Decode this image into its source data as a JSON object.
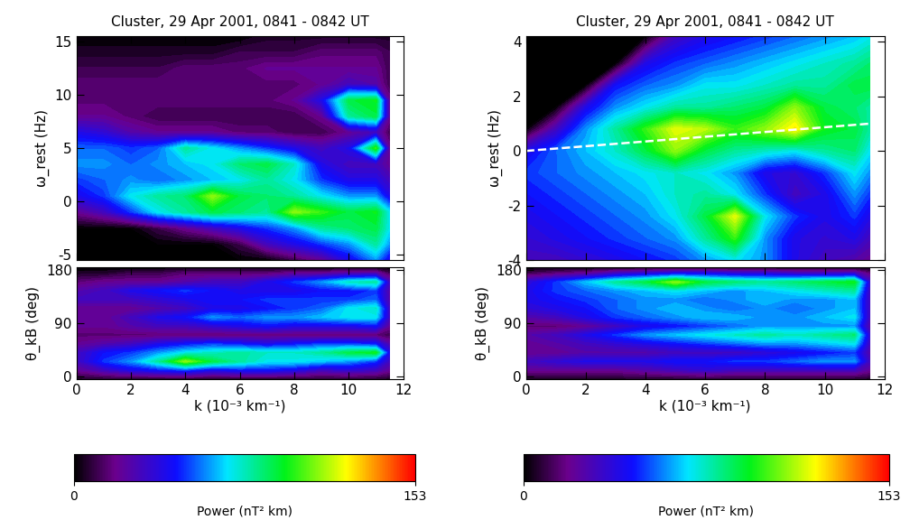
{
  "chart_data": [
    {
      "type": "heatmap",
      "title": "Cluster, 29 Apr 2001, 0841 - 0842 UT",
      "y_label": "ω_rest (Hz)",
      "tick_labels": "y",
      "xlim": [
        0,
        12
      ],
      "ylim": [
        -5.5,
        15.5
      ],
      "xticks": [
        0,
        2,
        4,
        6,
        8,
        10,
        12
      ],
      "yticks": [
        -5,
        0,
        5,
        10,
        15
      ],
      "x": [
        0,
        1,
        2,
        3,
        4,
        5,
        6,
        7,
        8,
        9,
        10,
        11,
        11.5
      ],
      "y": [
        -5.5,
        -4,
        -2.5,
        -1,
        0.5,
        2,
        3.5,
        5,
        6.5,
        8,
        9.5,
        11,
        12.5,
        14,
        15.5
      ],
      "cells": [
        [
          0,
          0,
          0,
          0,
          0,
          0,
          0,
          0,
          10,
          20,
          40,
          60,
          40
        ],
        [
          0,
          0,
          0,
          0,
          0,
          0,
          10,
          30,
          40,
          50,
          60,
          80,
          60
        ],
        [
          0,
          0,
          0,
          10,
          20,
          30,
          40,
          50,
          60,
          80,
          85,
          90,
          70
        ],
        [
          20,
          30,
          50,
          70,
          80,
          90,
          85,
          80,
          110,
          100,
          90,
          95,
          70
        ],
        [
          40,
          50,
          70,
          80,
          85,
          110,
          90,
          85,
          80,
          70,
          60,
          60,
          40
        ],
        [
          50,
          55,
          60,
          55,
          60,
          65,
          70,
          80,
          70,
          50,
          40,
          40,
          30
        ],
        [
          60,
          60,
          55,
          60,
          65,
          70,
          85,
          90,
          75,
          40,
          30,
          30,
          20
        ],
        [
          55,
          55,
          50,
          55,
          80,
          70,
          60,
          50,
          40,
          30,
          40,
          100,
          20
        ],
        [
          40,
          35,
          25,
          20,
          20,
          20,
          15,
          15,
          10,
          10,
          20,
          30,
          10
        ],
        [
          20,
          20,
          15,
          10,
          10,
          10,
          10,
          10,
          10,
          20,
          80,
          90,
          20
        ],
        [
          15,
          15,
          15,
          15,
          15,
          15,
          15,
          15,
          20,
          40,
          90,
          95,
          20
        ],
        [
          15,
          15,
          15,
          15,
          15,
          15,
          15,
          15,
          15,
          20,
          30,
          25,
          10
        ],
        [
          10,
          10,
          10,
          10,
          15,
          15,
          15,
          20,
          20,
          20,
          20,
          20,
          10
        ],
        [
          5,
          5,
          5,
          5,
          5,
          5,
          10,
          10,
          10,
          15,
          15,
          15,
          10
        ],
        [
          0,
          0,
          0,
          0,
          0,
          0,
          0,
          5,
          5,
          5,
          5,
          5,
          5
        ]
      ]
    },
    {
      "type": "heatmap",
      "x_label": "k (10⁻³ km⁻¹)",
      "y_label": "θ_kB (deg)",
      "xlim": [
        0,
        12
      ],
      "ylim": [
        -5,
        185
      ],
      "xticks": [
        0,
        2,
        4,
        6,
        8,
        10,
        12
      ],
      "yticks": [
        0,
        90,
        180
      ],
      "x": [
        0,
        1,
        2,
        3,
        4,
        5,
        6,
        7,
        8,
        9,
        10,
        11,
        11.5
      ],
      "y": [
        -5,
        10,
        25,
        40,
        55,
        70,
        85,
        100,
        115,
        130,
        145,
        160,
        175,
        185
      ],
      "cells": [
        [
          5,
          5,
          5,
          5,
          5,
          5,
          5,
          5,
          5,
          5,
          5,
          5,
          5
        ],
        [
          20,
          30,
          40,
          45,
          50,
          40,
          45,
          45,
          40,
          30,
          35,
          30,
          20
        ],
        [
          30,
          50,
          60,
          80,
          110,
          90,
          80,
          70,
          70,
          65,
          60,
          50,
          30
        ],
        [
          30,
          45,
          50,
          60,
          70,
          75,
          80,
          75,
          75,
          80,
          90,
          95,
          40
        ],
        [
          20,
          25,
          30,
          40,
          45,
          50,
          45,
          40,
          45,
          50,
          50,
          45,
          25
        ],
        [
          15,
          15,
          15,
          15,
          15,
          15,
          15,
          15,
          15,
          15,
          15,
          15,
          10
        ],
        [
          20,
          20,
          25,
          30,
          30,
          35,
          40,
          45,
          40,
          40,
          40,
          45,
          20
        ],
        [
          20,
          20,
          30,
          40,
          45,
          60,
          55,
          60,
          60,
          65,
          70,
          70,
          30
        ],
        [
          20,
          20,
          20,
          25,
          30,
          40,
          40,
          45,
          50,
          55,
          70,
          75,
          30
        ],
        [
          30,
          30,
          30,
          35,
          40,
          45,
          45,
          50,
          50,
          50,
          50,
          55,
          25
        ],
        [
          25,
          30,
          40,
          45,
          50,
          45,
          40,
          40,
          40,
          45,
          45,
          50,
          25
        ],
        [
          15,
          20,
          20,
          20,
          25,
          30,
          30,
          40,
          50,
          60,
          75,
          80,
          30
        ],
        [
          5,
          5,
          10,
          10,
          15,
          15,
          15,
          15,
          20,
          20,
          25,
          25,
          10
        ],
        [
          0,
          0,
          0,
          0,
          0,
          0,
          0,
          0,
          0,
          0,
          0,
          0,
          0
        ]
      ],
      "colorbar_range": [
        0,
        153
      ],
      "colorbar_ticks": [
        0,
        153
      ],
      "colorbar_label": "Power (nT² km)"
    },
    {
      "type": "heatmap",
      "title": "Cluster, 29 Apr 2001, 0841 - 0842 UT",
      "y_label": "ω_rest (Hz)",
      "tick_labels": "y",
      "xlim": [
        0,
        12
      ],
      "ylim": [
        -4,
        4.2
      ],
      "xticks": [
        0,
        2,
        4,
        6,
        8,
        10,
        12
      ],
      "yticks": [
        -4,
        -2,
        0,
        2,
        4
      ],
      "x": [
        0,
        1,
        2,
        3,
        4,
        5,
        6,
        7,
        8,
        9,
        10,
        11,
        11.5
      ],
      "y": [
        -4,
        -3.2,
        -2.4,
        -1.6,
        -0.8,
        0,
        0.8,
        1.6,
        2.4,
        3.2,
        4.2
      ],
      "cells": [
        [
          30,
          30,
          35,
          40,
          45,
          50,
          60,
          70,
          60,
          40,
          30,
          25,
          20
        ],
        [
          35,
          40,
          45,
          50,
          55,
          60,
          80,
          100,
          60,
          40,
          35,
          40,
          30
        ],
        [
          40,
          45,
          50,
          55,
          60,
          70,
          90,
          120,
          70,
          50,
          40,
          50,
          40
        ],
        [
          45,
          50,
          55,
          60,
          65,
          75,
          80,
          70,
          50,
          30,
          40,
          60,
          50
        ],
        [
          50,
          55,
          60,
          65,
          70,
          75,
          70,
          60,
          40,
          35,
          50,
          70,
          60
        ],
        [
          40,
          55,
          65,
          75,
          90,
          110,
          90,
          80,
          75,
          70,
          80,
          85,
          70
        ],
        [
          0,
          30,
          60,
          80,
          100,
          120,
          115,
          100,
          110,
          125,
          95,
          90,
          80
        ],
        [
          0,
          0,
          40,
          60,
          70,
          80,
          80,
          85,
          90,
          110,
          90,
          85,
          80
        ],
        [
          0,
          0,
          0,
          45,
          55,
          60,
          70,
          70,
          75,
          80,
          80,
          90,
          90
        ],
        [
          0,
          0,
          0,
          0,
          40,
          50,
          55,
          60,
          65,
          70,
          75,
          80,
          85
        ],
        [
          0,
          0,
          0,
          0,
          0,
          30,
          40,
          45,
          50,
          55,
          60,
          65,
          70
        ]
      ],
      "line": {
        "x": [
          0,
          11.5
        ],
        "y": [
          0,
          1.0
        ],
        "color": "white",
        "line_style": "dashed"
      }
    },
    {
      "type": "heatmap",
      "x_label": "k (10⁻³ km⁻¹)",
      "y_label": "θ_kB (deg)",
      "xlim": [
        0,
        12
      ],
      "ylim": [
        -5,
        185
      ],
      "xticks": [
        0,
        2,
        4,
        6,
        8,
        10,
        12
      ],
      "yticks": [
        0,
        90,
        180
      ],
      "x": [
        0,
        1,
        2,
        3,
        4,
        5,
        6,
        7,
        8,
        9,
        10,
        11,
        11.5
      ],
      "y": [
        -5,
        10,
        25,
        40,
        55,
        70,
        85,
        100,
        115,
        130,
        145,
        160,
        175,
        185
      ],
      "cells": [
        [
          5,
          5,
          5,
          5,
          5,
          5,
          5,
          5,
          5,
          5,
          5,
          5,
          5
        ],
        [
          20,
          20,
          20,
          20,
          25,
          30,
          35,
          30,
          30,
          30,
          30,
          30,
          20
        ],
        [
          30,
          35,
          40,
          40,
          40,
          45,
          45,
          50,
          50,
          55,
          60,
          60,
          30
        ],
        [
          20,
          20,
          25,
          25,
          25,
          30,
          30,
          30,
          35,
          40,
          45,
          50,
          25
        ],
        [
          20,
          25,
          30,
          35,
          40,
          45,
          50,
          55,
          60,
          60,
          65,
          70,
          30
        ],
        [
          25,
          30,
          40,
          50,
          60,
          65,
          70,
          75,
          80,
          75,
          80,
          85,
          35
        ],
        [
          15,
          15,
          20,
          30,
          40,
          45,
          50,
          55,
          60,
          60,
          60,
          60,
          25
        ],
        [
          25,
          30,
          40,
          50,
          55,
          60,
          65,
          65,
          60,
          60,
          65,
          70,
          30
        ],
        [
          35,
          40,
          45,
          55,
          60,
          65,
          60,
          55,
          60,
          55,
          60,
          65,
          30
        ],
        [
          40,
          45,
          50,
          55,
          60,
          60,
          55,
          60,
          65,
          60,
          60,
          65,
          30
        ],
        [
          40,
          50,
          55,
          60,
          65,
          70,
          65,
          60,
          65,
          70,
          75,
          80,
          30
        ],
        [
          35,
          50,
          65,
          80,
          90,
          110,
          90,
          85,
          80,
          85,
          90,
          95,
          35
        ],
        [
          10,
          15,
          20,
          30,
          35,
          40,
          40,
          35,
          35,
          30,
          30,
          30,
          15
        ],
        [
          0,
          0,
          0,
          0,
          0,
          0,
          0,
          0,
          0,
          0,
          0,
          0,
          0
        ]
      ],
      "colorbar_range": [
        0,
        153
      ],
      "colorbar_ticks": [
        0,
        153
      ],
      "colorbar_label": "Power (nT² km)"
    }
  ]
}
